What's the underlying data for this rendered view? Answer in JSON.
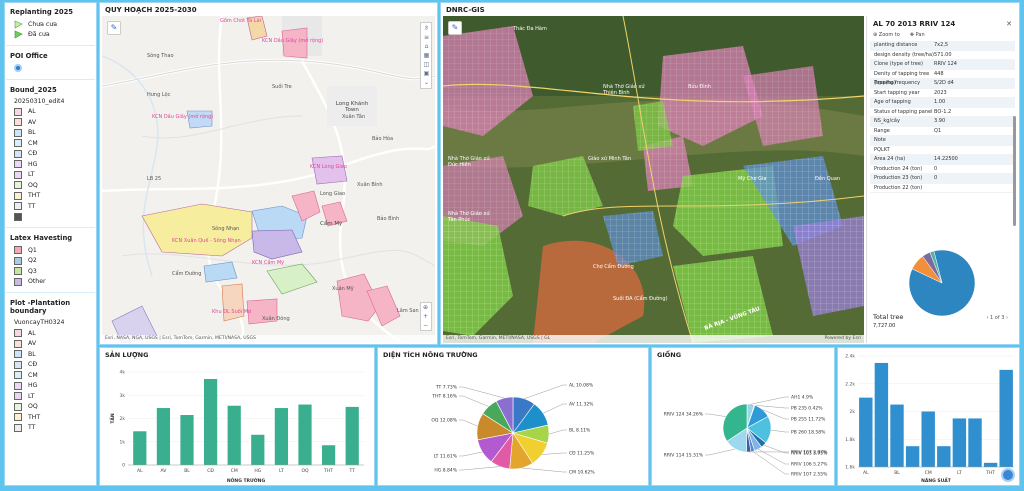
{
  "legend": {
    "replanting": {
      "title": "Replanting 2025",
      "items": [
        {
          "label": "Chưa cưa",
          "color": "#bff0a3"
        },
        {
          "label": "Đã cưa",
          "color": "#6cd15a"
        }
      ]
    },
    "poi": {
      "title": "POI Office"
    },
    "bound": {
      "title": "Bound_2025",
      "layer": "20250310_edit4",
      "items": [
        {
          "label": "AL",
          "color": "#f6d7e6"
        },
        {
          "label": "AV",
          "color": "#f9e0d9"
        },
        {
          "label": "BL",
          "color": "#cfe3fb"
        },
        {
          "label": "CM",
          "color": "#d9eef8"
        },
        {
          "label": "CĐ",
          "color": "#d6e4f5"
        },
        {
          "label": "HG",
          "color": "#eed8f3"
        },
        {
          "label": "LT",
          "color": "#e8d8f5"
        },
        {
          "label": "OQ",
          "color": "#e7f3da"
        },
        {
          "label": "THT",
          "color": "#fbf0d5"
        },
        {
          "label": "TT",
          "color": "#eeeeee"
        },
        {
          "label": "",
          "color": "#555555"
        }
      ]
    },
    "latex": {
      "title": "Latex Havesting",
      "items": [
        {
          "label": "Q1",
          "color": "#f2a9b8"
        },
        {
          "label": "Q2",
          "color": "#a8cbe8"
        },
        {
          "label": "Q3",
          "color": "#c6e6a3"
        },
        {
          "label": "Other",
          "color": "#c9b9e4"
        }
      ]
    },
    "plot": {
      "title": "Plot -Plantation boundary",
      "layer": "VuoncayTH0324",
      "items": [
        {
          "label": "AL",
          "color": "#f6d7e6"
        },
        {
          "label": "AV",
          "color": "#f9e0d9"
        },
        {
          "label": "BL",
          "color": "#cfe3fb"
        },
        {
          "label": "CĐ",
          "color": "#d6e4f5"
        },
        {
          "label": "CM",
          "color": "#d9eef8"
        },
        {
          "label": "HG",
          "color": "#eed8f3"
        },
        {
          "label": "LT",
          "color": "#e8d8f5"
        },
        {
          "label": "OQ",
          "color": "#e7f3da"
        },
        {
          "label": "THT",
          "color": "#fbf0d5"
        },
        {
          "label": "TT",
          "color": "#eeeeee"
        }
      ]
    }
  },
  "map1": {
    "title": "QUY HOẠCH 2025-2030",
    "credit": "Esri, NASA, NGA, USGS | Esri, TomTom, Garmin, METI/NASA, USGS",
    "places": [
      "Sông Thao",
      "Hưng Lộc",
      "Suối Tre",
      "Long Khánh Town",
      "Xuân Tân",
      "Bảo Hòa",
      "Xuân Bình",
      "LB 25",
      "Long Giao",
      "Cẩm Mỹ",
      "Bảo Bình",
      "Xuân Mỹ",
      "Sông Nhạn",
      "Cẩm Đường",
      "Lâm San",
      "Xuân Đông"
    ],
    "pink_labels": [
      "Gồm Chót Tà Lài",
      "KCN Dầu Giây (mở rộng)",
      "KCN Dầu Giây (mở rộng)",
      "KCN Long Giao",
      "KCN Xuân Quế - Sông Nhạn",
      "KCN Cẩm Mỹ",
      "Khu DL Suối Mơ"
    ]
  },
  "map2": {
    "title": "DNRC-GIS",
    "credit": "Esri, TomTom, Garmin, METI/NASA, USGS | GL",
    "powered": "Powered by Esri",
    "places": [
      "Thác Đa Hàm",
      "Bửu Đình",
      "Nhà Thờ Giáo xứ Thiện Bình",
      "Giáo xứ Minh Tân",
      "Mỹ Chợ Gia",
      "Đền Quan",
      "Chợ Cẩm Đường",
      "Suối ĐA (Cẩm Đường)",
      "Nhà Thờ Giáo xứ Đức Hiền",
      "Nhà Thờ Giáo xứ Tân Phúc",
      "BÀ RỊA - VŨNG TÀU"
    ]
  },
  "info": {
    "title": "AL 70 2013 RRIV 124",
    "zoom": "Zoom to",
    "pan": "Pan",
    "pager": "1 of 3",
    "total_label": "Total tree",
    "total_value": "7,727.00",
    "rows": [
      [
        "planting distance",
        "7x2,5"
      ],
      [
        "design density (tree/ha)",
        "571.00"
      ],
      [
        "Clone (type of tree)",
        "RRIV 124"
      ],
      [
        "Denity of tapping tree (tree/ha)",
        "448"
      ],
      [
        "Tapping frequency",
        "S/2D d4"
      ],
      [
        "Start tapping year",
        "2023"
      ],
      [
        "Age of tapping",
        "1.00"
      ],
      [
        "Status of tapping panel",
        "BO-1.2"
      ],
      [
        "NS_kg/cây",
        "3.90"
      ],
      [
        "Range",
        "Q1"
      ],
      [
        "Note",
        ""
      ],
      [
        "PQLKT",
        ""
      ],
      [
        "Area 24 (ha)",
        "14.22500"
      ],
      [
        "Production 24 (ton)",
        "0"
      ],
      [
        "Production 23 (ton)",
        "0"
      ],
      [
        "Production 22 (ton)",
        ""
      ]
    ],
    "pie": [
      {
        "value": 86,
        "color": "#2e86c1"
      },
      {
        "value": 8,
        "color": "#f18f3b"
      },
      {
        "value": 4,
        "color": "#7c6b9e"
      },
      {
        "value": 2,
        "color": "#4fb3a8"
      }
    ]
  },
  "chart_data": [
    {
      "type": "bar",
      "title": "SẢN LƯỢNG",
      "xlabel": "NÔNG TRƯỜNG",
      "ylabel": "TẤN",
      "categories": [
        "AL",
        "AV",
        "BL",
        "CĐ",
        "CM",
        "HG",
        "LT",
        "OQ",
        "THT",
        "TT"
      ],
      "values": [
        1450,
        2450,
        2150,
        3700,
        2550,
        1300,
        2450,
        2600,
        850,
        2500
      ],
      "ylim": [
        0,
        4000
      ],
      "ticks": [
        "0",
        "1k",
        "2k",
        "3k",
        "4k"
      ],
      "color": "#3aaf8f"
    },
    {
      "type": "pie",
      "title": "DIỆN TÍCH NÔNG TRƯỜNG",
      "slices": [
        {
          "label": "AL 10.08%",
          "value": 10.08,
          "color": "#3a79c6"
        },
        {
          "label": "AV 11.32%",
          "value": 11.32,
          "color": "#1e90c9"
        },
        {
          "label": "BL 8.11%",
          "value": 8.11,
          "color": "#a8d44a"
        },
        {
          "label": "CĐ 11.25%",
          "value": 11.25,
          "color": "#f0cf2e"
        },
        {
          "label": "CM 10.62%",
          "value": 10.62,
          "color": "#e3a52b"
        },
        {
          "label": "HG 8.84%",
          "value": 8.84,
          "color": "#e05aa6"
        },
        {
          "label": "LT 11.61%",
          "value": 11.61,
          "color": "#b45ad1"
        },
        {
          "label": "OQ 12.08%",
          "value": 12.08,
          "color": "#c98a2c"
        },
        {
          "label": "THT 8.16%",
          "value": 8.16,
          "color": "#4aa85a"
        },
        {
          "label": "TT 7.73%",
          "value": 7.73,
          "color": "#8a6fd1"
        }
      ]
    },
    {
      "type": "pie",
      "title": "GIỐNG",
      "slices": [
        {
          "label": "AH1 4.9%",
          "value": 4.9,
          "color": "#9ad6e5"
        },
        {
          "label": "PB 235 0.42%",
          "value": 0.42,
          "color": "#7a9fd1"
        },
        {
          "label": "PB 255 11.72%",
          "value": 11.72,
          "color": "#2e9ad6"
        },
        {
          "label": "PB 260 18.58%",
          "value": 18.58,
          "color": "#4ec0e0"
        },
        {
          "label": "RRIV 103 3.95%",
          "value": 3.95,
          "color": "#1f6fae"
        },
        {
          "label": "RRIV 106 5.27%",
          "value": 5.27,
          "color": "#7fb4e6"
        },
        {
          "label": "RRIV 107 2.55%",
          "value": 2.55,
          "color": "#5a87c9"
        },
        {
          "label": "RRIV 107 2.97%",
          "value": 2.97,
          "color": "#3b5ea6"
        },
        {
          "label": "RRIV 114 15.31%",
          "value": 15.31,
          "color": "#9ed8f0"
        },
        {
          "label": "RRIV 124 34.26%",
          "value": 34.26,
          "color": "#33b58d"
        }
      ]
    },
    {
      "type": "bar",
      "xlabel": "NĂNG SUẤT",
      "categories": [
        "AL",
        "",
        "BL",
        "",
        "CM",
        "",
        "LT",
        "",
        "THT",
        ""
      ],
      "values": [
        2.1,
        2.35,
        2.05,
        1.75,
        2.0,
        1.75,
        1.95,
        1.95,
        1.63,
        2.3
      ],
      "ylim": [
        1.6,
        2.4
      ],
      "ticks": [
        "1.6k",
        "1.8k",
        "2k",
        "2.2k",
        "2.4k"
      ],
      "color": "#2f8fcf"
    }
  ]
}
